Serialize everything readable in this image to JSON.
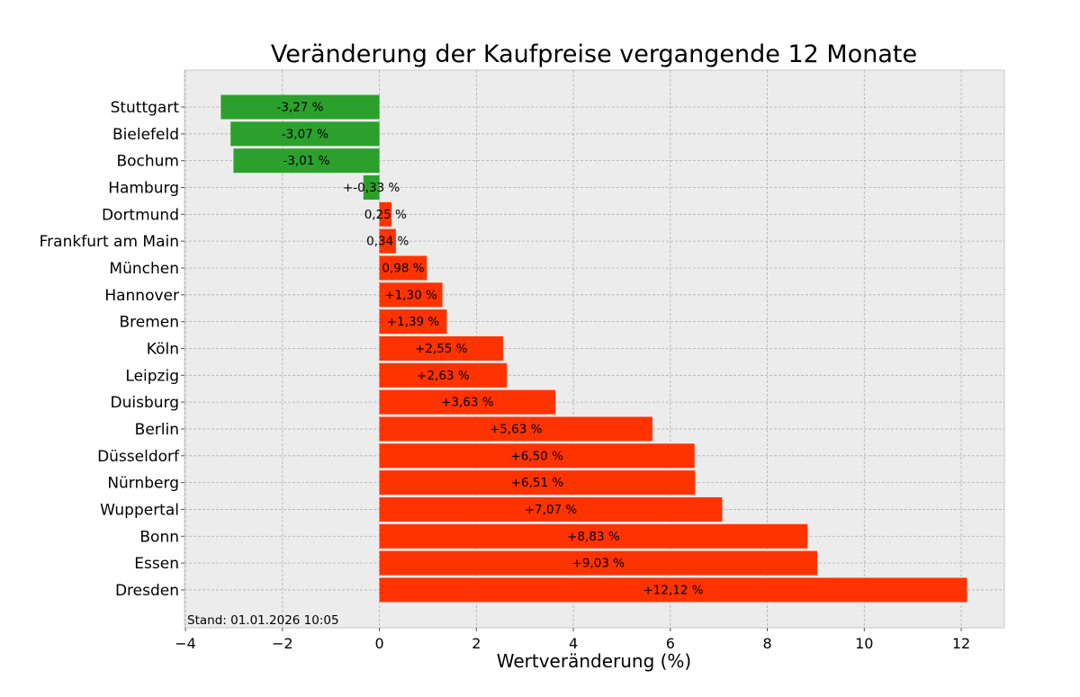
{
  "chart_data": {
    "type": "bar",
    "orientation": "horizontal",
    "title": "Veränderung der Kaufpreise vergangende 12 Monate",
    "xlabel": "Wertveränderung (%)",
    "ylabel": "",
    "xlim": [
      -4.02,
      12.89
    ],
    "xticks": [
      -4,
      -2,
      0,
      2,
      4,
      6,
      8,
      10,
      12
    ],
    "xtick_labels": [
      "−4",
      "−2",
      "0",
      "2",
      "4",
      "6",
      "8",
      "10",
      "12"
    ],
    "grid": true,
    "annotation": "Stand: 01.01.2026 10:05",
    "categories": [
      "Stuttgart",
      "Bielefeld",
      "Bochum",
      "Hamburg",
      "Dortmund",
      "Frankfurt am Main",
      "München",
      "Hannover",
      "Bremen",
      "Köln",
      "Leipzig",
      "Duisburg",
      "Berlin",
      "Düsseldorf",
      "Nürnberg",
      "Wuppertal",
      "Bonn",
      "Essen",
      "Dresden"
    ],
    "values": [
      -3.27,
      -3.07,
      -3.01,
      -0.33,
      0.25,
      0.34,
      0.98,
      1.3,
      1.39,
      2.55,
      2.63,
      3.63,
      5.63,
      6.5,
      6.51,
      7.07,
      8.83,
      9.03,
      12.12
    ],
    "data_labels": [
      "-3,27 %",
      "-3,07 %",
      "-3,01 %",
      "+-0,33 %",
      "0,25 %",
      "0,34 %",
      "0,98 %",
      "+1,30 %",
      "+1,39 %",
      "+2,55 %",
      "+2,63 %",
      "+3,63 %",
      "+5,63 %",
      "+6,50 %",
      "+6,51 %",
      "+7,07 %",
      "+8,83 %",
      "+9,03 %",
      "+12,12 %"
    ],
    "colors": {
      "negative": "#2ca02c",
      "positive": "#ff3300",
      "background": "#ececec",
      "grid": "#b0b0b0"
    }
  }
}
